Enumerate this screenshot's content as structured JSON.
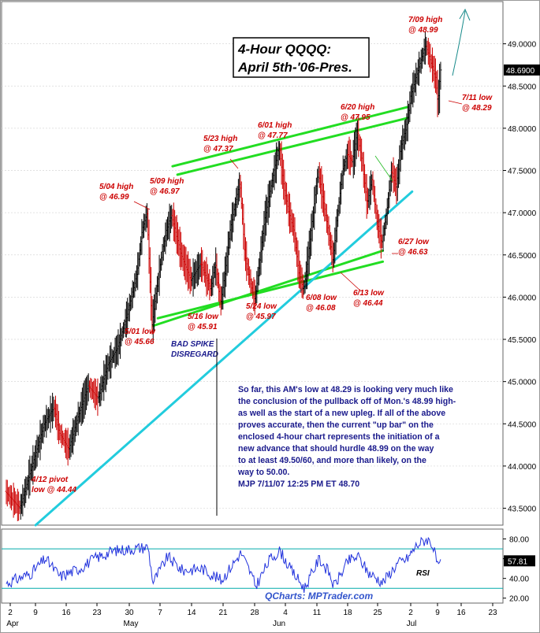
{
  "chart_data": [
    {
      "type": "ohlc",
      "title": "4-Hour QQQQ:",
      "subtitle": "April 5th-'06-Pres.",
      "ylim": [
        43.3,
        49.5
      ],
      "y_ticks": [
        "43.5000",
        "44.0000",
        "44.5000",
        "45.0000",
        "45.5000",
        "46.0000",
        "46.5000",
        "47.0000",
        "47.5000",
        "48.0000",
        "48.5000",
        "49.0000"
      ],
      "last_price_label": "48.6900",
      "last_price": 48.69,
      "x_ticks": [
        "2",
        "9",
        "16",
        "23",
        "30",
        "7",
        "14",
        "21",
        "28",
        "4",
        "11",
        "18",
        "25",
        "2",
        "9",
        "16",
        "23"
      ],
      "x_month_labels": [
        "Apr",
        "May",
        "Jun",
        "Jul"
      ],
      "path": [
        [
          0,
          43.7
        ],
        [
          3,
          43.5
        ],
        [
          5,
          43.9
        ],
        [
          8,
          44.5
        ],
        [
          10,
          44.7
        ],
        [
          11,
          44.4
        ],
        [
          13,
          44.2
        ],
        [
          15,
          44.6
        ],
        [
          17,
          44.95
        ],
        [
          19,
          44.8
        ],
        [
          21,
          45.2
        ],
        [
          23,
          45.4
        ],
        [
          25,
          45.8
        ],
        [
          27,
          46.3
        ],
        [
          28,
          46.8
        ],
        [
          29,
          46.99
        ],
        [
          30,
          45.66
        ],
        [
          31,
          46.1
        ],
        [
          32,
          46.5
        ],
        [
          33,
          46.8
        ],
        [
          34,
          46.97
        ],
        [
          36,
          46.5
        ],
        [
          38,
          46.2
        ],
        [
          40,
          46.4
        ],
        [
          42,
          46.1
        ],
        [
          43,
          46.4
        ],
        [
          44,
          45.91
        ],
        [
          45,
          46.3
        ],
        [
          46,
          46.8
        ],
        [
          48,
          47.37
        ],
        [
          49,
          46.5
        ],
        [
          50,
          46.2
        ],
        [
          51,
          45.97
        ],
        [
          52,
          46.4
        ],
        [
          53,
          46.9
        ],
        [
          54,
          47.2
        ],
        [
          55,
          47.5
        ],
        [
          56,
          47.77
        ],
        [
          57,
          47.3
        ],
        [
          58,
          47.0
        ],
        [
          59,
          46.8
        ],
        [
          60,
          46.3
        ],
        [
          61,
          46.08
        ],
        [
          62,
          46.5
        ],
        [
          63,
          47.0
        ],
        [
          64,
          47.5
        ],
        [
          66,
          46.8
        ],
        [
          67,
          46.44
        ],
        [
          68,
          47.0
        ],
        [
          69,
          47.5
        ],
        [
          70,
          47.7
        ],
        [
          71,
          47.6
        ],
        [
          72,
          47.95
        ],
        [
          73,
          47.6
        ],
        [
          74,
          47.1
        ],
        [
          75,
          47.4
        ],
        [
          76,
          46.9
        ],
        [
          77,
          46.63
        ],
        [
          78,
          47.0
        ],
        [
          79,
          47.5
        ],
        [
          80,
          47.3
        ],
        [
          81,
          47.8
        ],
        [
          82,
          48.0
        ],
        [
          83,
          48.4
        ],
        [
          84,
          48.6
        ],
        [
          85,
          48.8
        ],
        [
          86,
          48.99
        ],
        [
          87,
          48.8
        ],
        [
          88,
          48.6
        ],
        [
          88.5,
          48.29
        ],
        [
          89,
          48.69
        ]
      ],
      "overlay_lines": [
        {
          "color": "#22dd22",
          "from": [
            30,
            45.66
          ],
          "to": [
            77,
            46.55
          ]
        },
        {
          "color": "#22dd22",
          "from": [
            31,
            45.75
          ],
          "to": [
            77,
            46.42
          ]
        },
        {
          "color": "#22dd22",
          "from": [
            34,
            47.55
          ],
          "to": [
            82,
            48.25
          ]
        },
        {
          "color": "#22dd22",
          "from": [
            35,
            47.45
          ],
          "to": [
            82,
            48.12
          ]
        },
        {
          "color": "#22ccdd",
          "from": [
            6,
            43.3
          ],
          "to": [
            83,
            47.25
          ]
        }
      ],
      "annotations": [
        {
          "lines": [
            "7/09 high",
            "@ 48.99"
          ]
        },
        {
          "lines": [
            "6/20 high",
            "@ 47.95"
          ]
        },
        {
          "lines": [
            "6/01 high",
            "@ 47.77"
          ]
        },
        {
          "lines": [
            "5/23 high",
            "@ 47.37"
          ]
        },
        {
          "lines": [
            "5/04 high",
            "@ 46.99"
          ]
        },
        {
          "lines": [
            "5/09 high",
            "@ 46.97"
          ]
        },
        {
          "lines": [
            "7/11 low",
            "@ 48.29"
          ]
        },
        {
          "lines": [
            "6/27 low",
            "@ 46.63"
          ]
        },
        {
          "lines": [
            "6/13 low",
            "@ 46.44"
          ]
        },
        {
          "lines": [
            "6/08 low",
            "@ 46.08"
          ]
        },
        {
          "lines": [
            "5/24 low",
            "@ 45.97"
          ]
        },
        {
          "lines": [
            "5/16 low",
            "@ 45.91"
          ]
        },
        {
          "lines": [
            "5/01 low",
            "@ 45.66"
          ]
        },
        {
          "lines": [
            "4/12 pivot",
            "low @ 44.44"
          ]
        },
        {
          "lines": [
            "BAD SPIKE",
            "DISREGARD"
          ]
        }
      ],
      "commentary": [
        "So far, this AM's low at 48.29 is looking very much like",
        "the conclusion of the pullback off of Mon.'s 48.99 high-",
        "as well as the start of a new upleg. If all of the above",
        "proves accurate, then the current \"up bar\" on the",
        "enclosed 4-hour chart represents the initiation of a",
        "new advance that should hurdle 48.99 on the way",
        "to at least 49.50/60, and more than likely, on the",
        "way to 50.00.",
        "MJP 7/11/07 12:25 PM ET  48.70"
      ]
    },
    {
      "type": "line",
      "series": [
        {
          "name": "RSI"
        }
      ],
      "ylim": [
        15,
        90
      ],
      "y_ticks": [
        "20.00",
        "40.00",
        "60.00",
        "80.00"
      ],
      "last_value_label": "57.81",
      "last_value": 57.81,
      "bands": [
        30,
        70
      ],
      "path": [
        [
          0,
          35
        ],
        [
          5,
          45
        ],
        [
          8,
          60
        ],
        [
          11,
          42
        ],
        [
          15,
          50
        ],
        [
          18,
          60
        ],
        [
          22,
          68
        ],
        [
          26,
          70
        ],
        [
          29,
          72
        ],
        [
          30,
          36
        ],
        [
          33,
          62
        ],
        [
          36,
          48
        ],
        [
          40,
          50
        ],
        [
          44,
          38
        ],
        [
          48,
          66
        ],
        [
          50,
          45
        ],
        [
          51,
          32
        ],
        [
          54,
          60
        ],
        [
          56,
          68
        ],
        [
          58,
          50
        ],
        [
          61,
          30
        ],
        [
          64,
          60
        ],
        [
          66,
          46
        ],
        [
          67,
          32
        ],
        [
          70,
          58
        ],
        [
          72,
          62
        ],
        [
          74,
          46
        ],
        [
          77,
          36
        ],
        [
          80,
          55
        ],
        [
          82,
          60
        ],
        [
          84,
          74
        ],
        [
          86,
          80
        ],
        [
          87,
          76
        ],
        [
          88,
          58
        ],
        [
          88.5,
          48
        ],
        [
          89,
          57.81
        ]
      ]
    }
  ],
  "watermark": "QCharts: MPTrader.com",
  "colors": {
    "bars": "#000000",
    "channel": "#22dd22",
    "trendline": "#22ccdd",
    "annotation": "#cc0000",
    "rsi": "#2233dd",
    "arrow": "#1a8c8c"
  }
}
